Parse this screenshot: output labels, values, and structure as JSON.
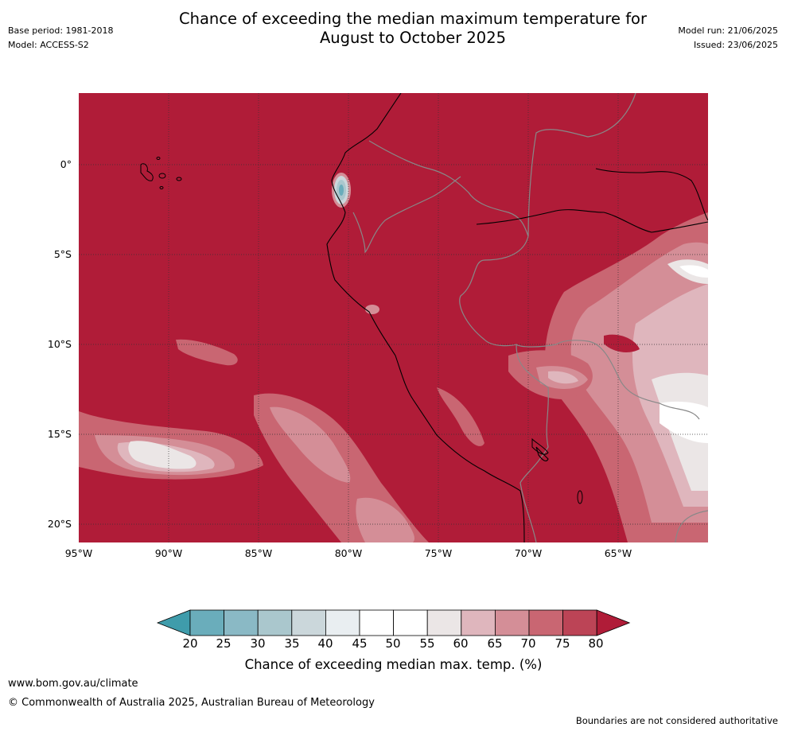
{
  "header": {
    "title_line1": "Chance of exceeding the median maximum temperature for",
    "title_line2": "August to October 2025",
    "base_period": "Base period: 1981-2018",
    "model": "Model: ACCESS-S2",
    "model_run": "Model run: 21/06/2025",
    "issued": "Issued: 23/06/2025"
  },
  "map": {
    "lat_labels": [
      "0°",
      "5°S",
      "10°S",
      "15°S",
      "20°S"
    ],
    "lon_labels": [
      "95°W",
      "90°W",
      "85°W",
      "80°W",
      "75°W",
      "70°W",
      "65°W"
    ],
    "background_category": "80+",
    "background_color": "#b01c38",
    "coastline_color": "#000000",
    "border_color": "#808080",
    "gridline_style": "dotted"
  },
  "colorbar": {
    "ticks": [
      "20",
      "25",
      "30",
      "35",
      "40",
      "45",
      "50",
      "55",
      "60",
      "65",
      "70",
      "75",
      "80"
    ],
    "colors": [
      "#3f9cab",
      "#6aadbb",
      "#8ab9c5",
      "#aac7cd",
      "#cbd7db",
      "#e9eef1",
      "#ffffff",
      "#ffffff",
      "#ebe6e6",
      "#dfb6bd",
      "#d48e97",
      "#c96672",
      "#bc4456",
      "#b01c38"
    ],
    "title": "Chance of exceeding median max. temp. (%)"
  },
  "footer": {
    "url": "www.bom.gov.au/climate",
    "copyright": "© Commonwealth of Australia 2025, Australian Bureau of Meteorology",
    "disclaimer": "Boundaries are not considered authoritative"
  }
}
